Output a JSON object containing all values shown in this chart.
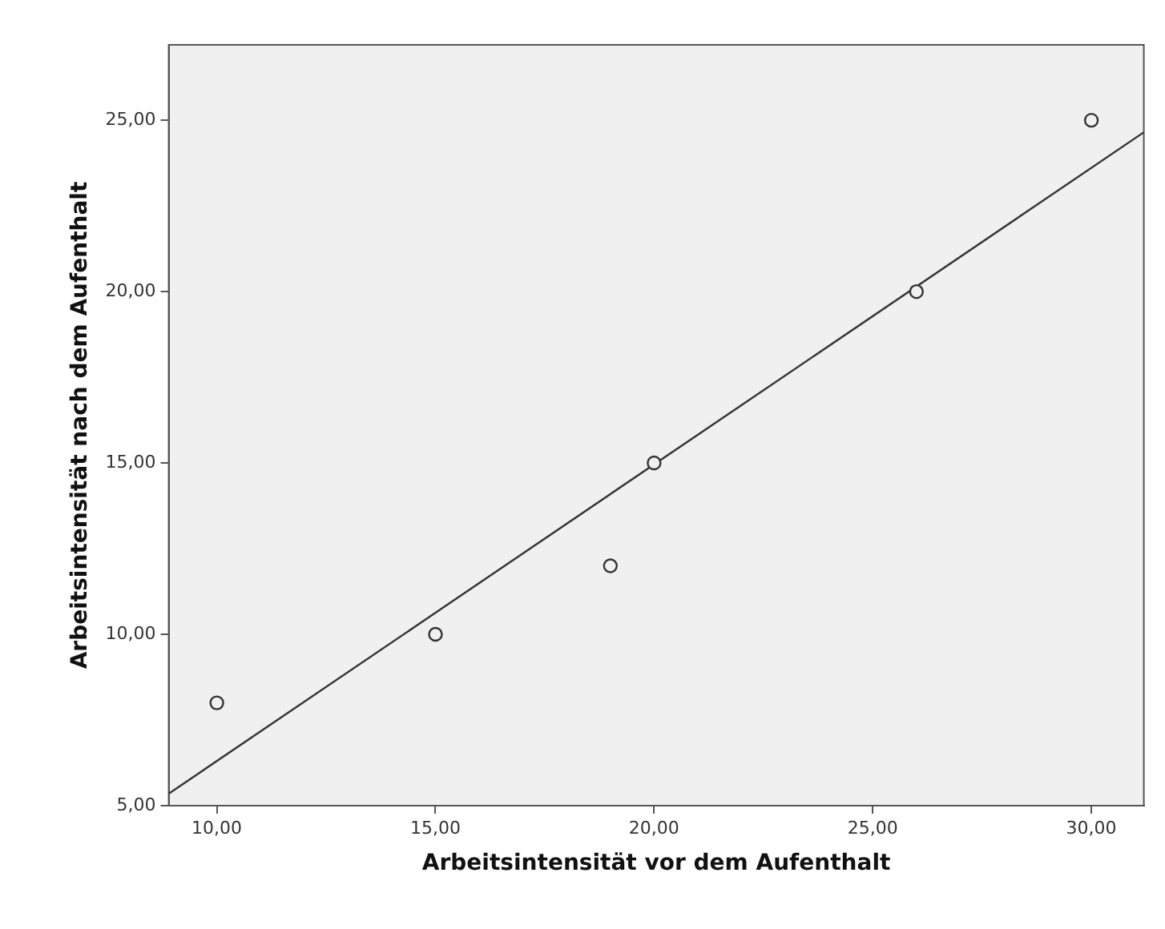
{
  "chart_data": {
    "type": "scatter",
    "xlabel": "Arbeitsintensität vor dem Aufenthalt",
    "ylabel": "Arbeitsintensität nach dem Aufenthalt",
    "series": [
      {
        "color": "#333333",
        "marker": "circle",
        "x": [
          10,
          15,
          19,
          20,
          26,
          30
        ],
        "values": [
          8,
          10,
          12,
          15,
          20,
          25
        ]
      },
      {
        "type": "line",
        "color": "#333333",
        "marker": "none",
        "x": [
          8.9,
          31.2
        ],
        "values": [
          5.35,
          24.65
        ],
        "line_style": "solid"
      }
    ],
    "xlim": [
      8.9,
      31.2
    ],
    "ylim": [
      5,
      27.2
    ],
    "xticks": [
      {
        "value": 10,
        "label": "10,00"
      },
      {
        "value": 15,
        "label": "15,00"
      },
      {
        "value": 20,
        "label": "20,00"
      },
      {
        "value": 25,
        "label": "25,00"
      },
      {
        "value": 30,
        "label": "30,00"
      }
    ],
    "yticks": [
      {
        "value": 5,
        "label": "5,00"
      },
      {
        "value": 10,
        "label": "10,00"
      },
      {
        "value": 15,
        "label": "15,00"
      },
      {
        "value": 20,
        "label": "20,00"
      },
      {
        "value": 25,
        "label": "25,00"
      }
    ],
    "grid": false,
    "legend": false
  }
}
